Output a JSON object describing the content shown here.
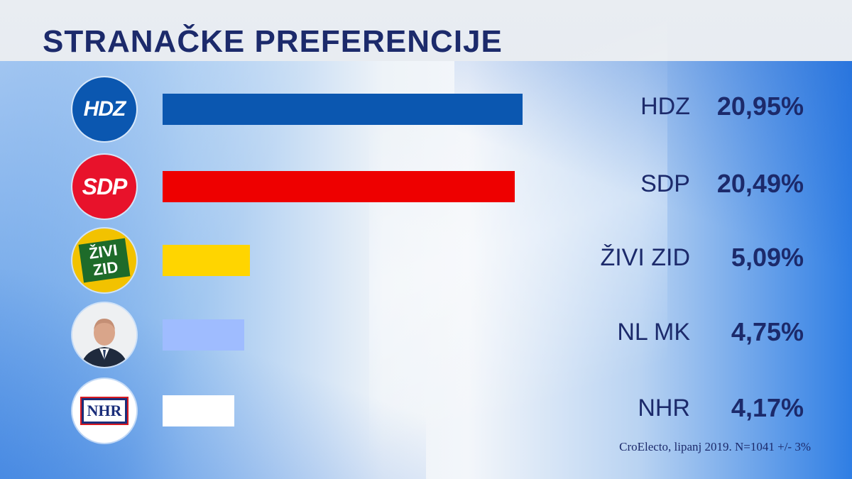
{
  "title": "STRANAČKE PREFERENCIJE",
  "source_note": "CroElecto, lipanj 2019. N=1041 +/- 3%",
  "colors": {
    "title": "#1c2a6b",
    "hdz": "#0b57b0",
    "sdp": "#ee0000",
    "zivi_zid": "#ffd500",
    "nl_mk": "#9fbcff",
    "nhr": "#ffffff"
  },
  "logos": {
    "hdz": "HDZ",
    "sdp": "SDP",
    "zivi_zid_line1": "ŽIVI",
    "zivi_zid_line2": "ZID",
    "nl_mk": "portrait-icon",
    "nhr": "NHR"
  },
  "chart_data": {
    "type": "bar",
    "orientation": "horizontal",
    "categories": [
      "HDZ",
      "SDP",
      "ŽIVI ZID",
      "NL MK",
      "NHR"
    ],
    "values": [
      20.95,
      20.49,
      5.09,
      4.75,
      4.17
    ],
    "value_labels": [
      "20,95%",
      "20,49%",
      "5,09%",
      "4,75%",
      "4,17%"
    ],
    "title": "STRANAČKE PREFERENCIJE",
    "xlabel": "",
    "ylabel": "",
    "grid": false,
    "legend": "none"
  }
}
